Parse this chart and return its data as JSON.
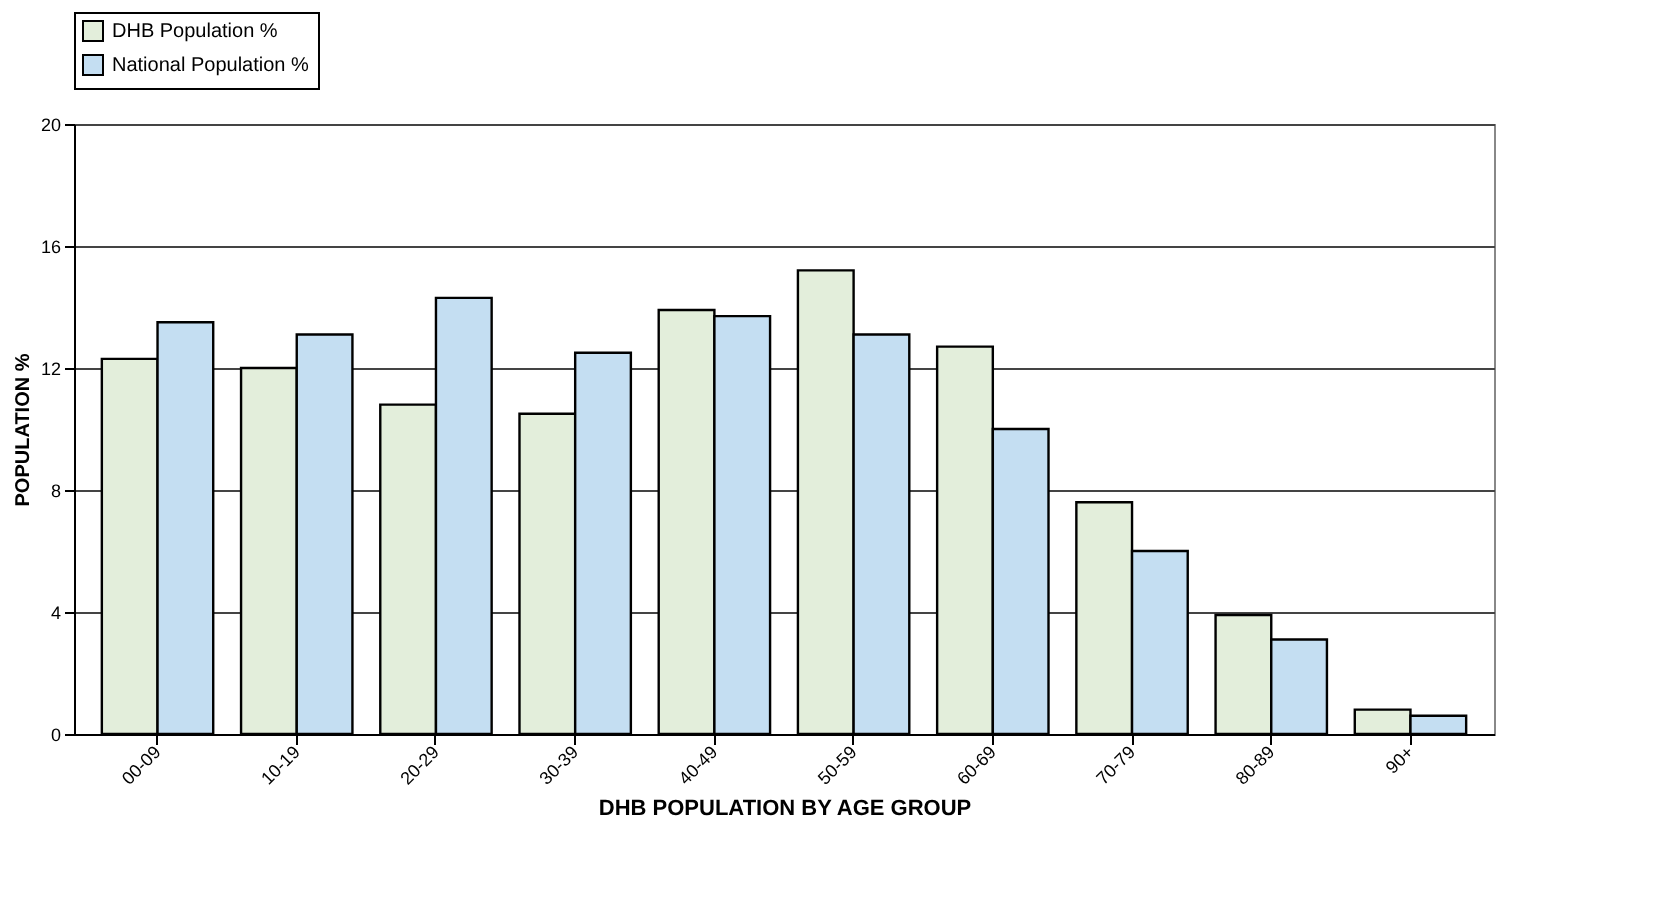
{
  "chart_data": {
    "type": "bar",
    "xlabel": "DHB POPULATION BY AGE GROUP",
    "ylabel": "POPULATION %",
    "categories": [
      "00-09",
      "10-19",
      "20-29",
      "30-39",
      "40-49",
      "50-59",
      "60-69",
      "70-79",
      "80-89",
      "90+"
    ],
    "series": [
      {
        "name": "DHB Population %",
        "color": "#e3eedb",
        "values": [
          12.3,
          12.0,
          10.8,
          10.5,
          13.9,
          15.2,
          12.7,
          7.6,
          3.9,
          0.8
        ]
      },
      {
        "name": "National Population %",
        "color": "#c4def2",
        "values": [
          13.5,
          13.1,
          14.3,
          12.5,
          13.7,
          13.1,
          10.0,
          6.0,
          3.1,
          0.6
        ]
      }
    ],
    "ylim": [
      0,
      20
    ],
    "yticks": [
      0,
      4,
      8,
      12,
      16,
      20
    ],
    "grid": "y",
    "legend": "top"
  }
}
